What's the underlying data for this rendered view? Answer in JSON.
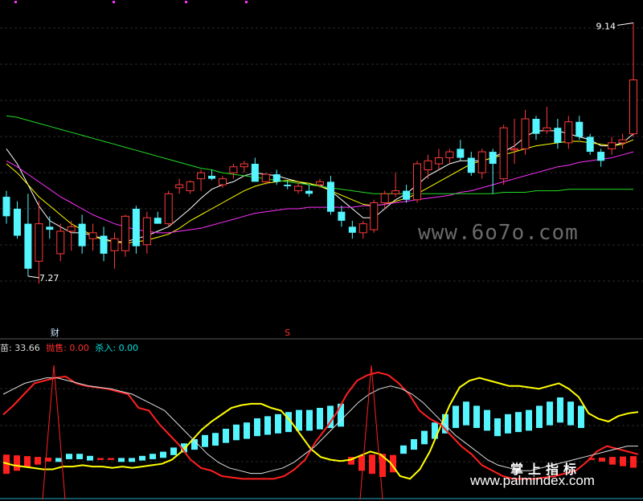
{
  "chart_data": [
    {
      "type": "candlestick",
      "price_high_label": "9.14",
      "price_low_label": "7.27",
      "markers": [
        {
          "label": "财",
          "color": "#cfe6ff",
          "x_index": 3
        },
        {
          "label": "S",
          "color": "#ff3030",
          "x_index": 26
        }
      ],
      "ylim": [
        7.15,
        9.25
      ],
      "candles": [
        {
          "o": 7.85,
          "h": 8.02,
          "l": 7.8,
          "c": 7.98,
          "up": false
        },
        {
          "o": 7.9,
          "h": 7.95,
          "l": 7.7,
          "c": 7.72,
          "up": false
        },
        {
          "o": 7.8,
          "h": 8.0,
          "l": 7.45,
          "c": 7.5,
          "up": false
        },
        {
          "o": 7.55,
          "h": 7.95,
          "l": 7.4,
          "c": 7.8,
          "up": true
        },
        {
          "o": 7.78,
          "h": 7.85,
          "l": 7.7,
          "c": 7.76,
          "up": false
        },
        {
          "o": 7.6,
          "h": 7.8,
          "l": 7.55,
          "c": 7.75,
          "up": true
        },
        {
          "o": 7.75,
          "h": 7.82,
          "l": 7.62,
          "c": 7.78,
          "up": true
        },
        {
          "o": 7.8,
          "h": 7.86,
          "l": 7.6,
          "c": 7.65,
          "up": false
        },
        {
          "o": 7.7,
          "h": 7.8,
          "l": 7.62,
          "c": 7.74,
          "up": true
        },
        {
          "o": 7.72,
          "h": 7.78,
          "l": 7.55,
          "c": 7.6,
          "up": false
        },
        {
          "o": 7.62,
          "h": 7.74,
          "l": 7.5,
          "c": 7.7,
          "up": true
        },
        {
          "o": 7.62,
          "h": 7.86,
          "l": 7.58,
          "c": 7.85,
          "up": true
        },
        {
          "o": 7.9,
          "h": 7.92,
          "l": 7.6,
          "c": 7.65,
          "up": false
        },
        {
          "o": 7.66,
          "h": 7.88,
          "l": 7.6,
          "c": 7.84,
          "up": true
        },
        {
          "o": 7.84,
          "h": 7.88,
          "l": 7.8,
          "c": 7.8,
          "up": false
        },
        {
          "o": 7.8,
          "h": 8.02,
          "l": 7.78,
          "c": 8.0,
          "up": true
        },
        {
          "o": 8.04,
          "h": 8.1,
          "l": 8.0,
          "c": 8.06,
          "up": true
        },
        {
          "o": 8.02,
          "h": 8.09,
          "l": 8.0,
          "c": 8.08,
          "up": true
        },
        {
          "o": 8.1,
          "h": 8.16,
          "l": 8.02,
          "c": 8.14,
          "up": true
        },
        {
          "o": 8.12,
          "h": 8.16,
          "l": 8.09,
          "c": 8.1,
          "up": false
        },
        {
          "o": 8.06,
          "h": 8.12,
          "l": 8.04,
          "c": 8.1,
          "up": true
        },
        {
          "o": 8.14,
          "h": 8.2,
          "l": 8.1,
          "c": 8.18,
          "up": true
        },
        {
          "o": 8.18,
          "h": 8.22,
          "l": 8.14,
          "c": 8.2,
          "up": true
        },
        {
          "o": 8.2,
          "h": 8.24,
          "l": 8.1,
          "c": 8.08,
          "up": false
        },
        {
          "o": 8.08,
          "h": 8.14,
          "l": 8.06,
          "c": 8.13,
          "up": true
        },
        {
          "o": 8.13,
          "h": 8.16,
          "l": 8.06,
          "c": 8.08,
          "up": false
        },
        {
          "o": 8.06,
          "h": 8.09,
          "l": 8.03,
          "c": 8.05,
          "up": false
        },
        {
          "o": 8.02,
          "h": 8.08,
          "l": 8.0,
          "c": 8.05,
          "up": true
        },
        {
          "o": 8.02,
          "h": 8.06,
          "l": 7.98,
          "c": 8.0,
          "up": false
        },
        {
          "o": 8.06,
          "h": 8.1,
          "l": 8.04,
          "c": 8.08,
          "up": true
        },
        {
          "o": 8.08,
          "h": 8.12,
          "l": 7.86,
          "c": 7.88,
          "up": false
        },
        {
          "o": 7.88,
          "h": 7.92,
          "l": 7.78,
          "c": 7.82,
          "up": false
        },
        {
          "o": 7.78,
          "h": 7.82,
          "l": 7.7,
          "c": 7.74,
          "up": false
        },
        {
          "o": 7.74,
          "h": 7.82,
          "l": 7.7,
          "c": 7.8,
          "up": true
        },
        {
          "o": 7.76,
          "h": 7.96,
          "l": 7.74,
          "c": 7.94,
          "up": true
        },
        {
          "o": 7.94,
          "h": 8.02,
          "l": 7.9,
          "c": 8.0,
          "up": true
        },
        {
          "o": 8.0,
          "h": 8.14,
          "l": 7.98,
          "c": 8.02,
          "up": true
        },
        {
          "o": 8.02,
          "h": 8.06,
          "l": 7.94,
          "c": 7.96,
          "up": false
        },
        {
          "o": 7.96,
          "h": 8.22,
          "l": 7.94,
          "c": 8.2,
          "up": true
        },
        {
          "o": 8.16,
          "h": 8.26,
          "l": 8.1,
          "c": 8.22,
          "up": true
        },
        {
          "o": 8.2,
          "h": 8.3,
          "l": 8.16,
          "c": 8.24,
          "up": true
        },
        {
          "o": 8.24,
          "h": 8.3,
          "l": 8.2,
          "c": 8.28,
          "up": true
        },
        {
          "o": 8.3,
          "h": 8.36,
          "l": 8.22,
          "c": 8.24,
          "up": false
        },
        {
          "o": 8.24,
          "h": 8.28,
          "l": 8.12,
          "c": 8.14,
          "up": false
        },
        {
          "o": 8.14,
          "h": 8.3,
          "l": 8.1,
          "c": 8.28,
          "up": true
        },
        {
          "o": 8.28,
          "h": 8.3,
          "l": 8.0,
          "c": 8.2,
          "up": false
        },
        {
          "o": 8.1,
          "h": 8.46,
          "l": 8.06,
          "c": 8.44,
          "up": true
        },
        {
          "o": 8.3,
          "h": 8.5,
          "l": 8.2,
          "c": 8.3,
          "up": true
        },
        {
          "o": 8.3,
          "h": 8.56,
          "l": 8.26,
          "c": 8.5,
          "up": true
        },
        {
          "o": 8.5,
          "h": 8.52,
          "l": 8.36,
          "c": 8.4,
          "up": false
        },
        {
          "o": 8.42,
          "h": 8.58,
          "l": 8.4,
          "c": 8.44,
          "up": true
        },
        {
          "o": 8.44,
          "h": 8.5,
          "l": 8.3,
          "c": 8.34,
          "up": false
        },
        {
          "o": 8.34,
          "h": 8.52,
          "l": 8.3,
          "c": 8.48,
          "up": true
        },
        {
          "o": 8.48,
          "h": 8.52,
          "l": 8.36,
          "c": 8.38,
          "up": false
        },
        {
          "o": 8.38,
          "h": 8.4,
          "l": 8.26,
          "c": 8.28,
          "up": false
        },
        {
          "o": 8.28,
          "h": 8.3,
          "l": 8.18,
          "c": 8.22,
          "up": false
        },
        {
          "o": 8.3,
          "h": 8.38,
          "l": 8.26,
          "c": 8.34,
          "up": true
        },
        {
          "o": 8.34,
          "h": 8.4,
          "l": 8.3,
          "c": 8.36,
          "up": true
        },
        {
          "o": 8.4,
          "h": 9.14,
          "l": 8.38,
          "c": 8.76,
          "up": true
        }
      ],
      "ma_series": [
        {
          "color": "#ffffff",
          "values": [
            8.3,
            8.2,
            8.06,
            7.92,
            7.82,
            7.78,
            7.74,
            7.74,
            7.72,
            7.7,
            7.68,
            7.68,
            7.7,
            7.72,
            7.75,
            7.78,
            7.84,
            7.9,
            7.97,
            8.03,
            8.06,
            8.08,
            8.12,
            8.14,
            8.13,
            8.12,
            8.1,
            8.08,
            8.06,
            8.06,
            8.02,
            7.96,
            7.9,
            7.84,
            7.84,
            7.9,
            7.96,
            8.0,
            8.06,
            8.12,
            8.16,
            8.2,
            8.22,
            8.22,
            8.22,
            8.24,
            8.28,
            8.32,
            8.38,
            8.42,
            8.42,
            8.42,
            8.4,
            8.38,
            8.36,
            8.32,
            8.32,
            8.34,
            8.4
          ]
        },
        {
          "color": "#ffff00",
          "values": [
            8.2,
            8.14,
            8.06,
            7.98,
            7.92,
            7.86,
            7.8,
            7.76,
            7.72,
            7.69,
            7.68,
            7.67,
            7.68,
            7.69,
            7.71,
            7.73,
            7.77,
            7.82,
            7.86,
            7.9,
            7.94,
            7.98,
            8.02,
            8.05,
            8.07,
            8.08,
            8.09,
            8.08,
            8.07,
            8.05,
            8.02,
            7.99,
            7.96,
            7.93,
            7.92,
            7.93,
            7.95,
            7.97,
            8.0,
            8.04,
            8.08,
            8.12,
            8.16,
            8.2,
            8.22,
            8.24,
            8.26,
            8.28,
            8.3,
            8.32,
            8.33,
            8.34,
            8.35,
            8.35,
            8.34,
            8.33,
            8.32,
            8.33,
            8.36
          ]
        },
        {
          "color": "#ff30ff",
          "values": [
            8.22,
            8.18,
            8.13,
            8.08,
            8.03,
            7.98,
            7.94,
            7.9,
            7.86,
            7.83,
            7.8,
            7.78,
            7.76,
            7.75,
            7.74,
            7.74,
            7.75,
            7.76,
            7.77,
            7.79,
            7.81,
            7.83,
            7.85,
            7.87,
            7.88,
            7.89,
            7.9,
            7.9,
            7.91,
            7.91,
            7.91,
            7.91,
            7.91,
            7.92,
            7.92,
            7.93,
            7.94,
            7.95,
            7.96,
            7.97,
            7.98,
            7.99,
            8.01,
            8.02,
            8.04,
            8.06,
            8.08,
            8.1,
            8.12,
            8.14,
            8.16,
            8.18,
            8.19,
            8.21,
            8.22,
            8.23,
            8.24,
            8.26,
            8.28
          ]
        },
        {
          "color": "#22dd22",
          "values": [
            8.52,
            8.51,
            8.49,
            8.47,
            8.45,
            8.43,
            8.41,
            8.39,
            8.37,
            8.35,
            8.33,
            8.31,
            8.29,
            8.27,
            8.25,
            8.23,
            8.21,
            8.19,
            8.17,
            8.16,
            8.14,
            8.13,
            8.12,
            8.11,
            8.1,
            8.09,
            8.08,
            8.07,
            8.06,
            8.05,
            8.04,
            8.03,
            8.02,
            8.01,
            8.0,
            8.0,
            8.0,
            8.0,
            8.0,
            8.0,
            8.0,
            8.0,
            8.0,
            8.0,
            8.0,
            8.0,
            8.01,
            8.01,
            8.01,
            8.02,
            8.02,
            8.02,
            8.03,
            8.03,
            8.03,
            8.03,
            8.03,
            8.03,
            8.03
          ]
        }
      ]
    },
    {
      "type": "indicator",
      "legend": [
        {
          "label": "苗: 33.66",
          "color": "#dddddd"
        },
        {
          "label": "抛售: 0.00",
          "color": "#ff3030"
        },
        {
          "label": "杀入: 0.00",
          "color": "#00e0e0"
        }
      ],
      "ylim": [
        0,
        100
      ],
      "bars": [
        {
          "v": -10
        },
        {
          "v": -8
        },
        {
          "v": -6
        },
        {
          "v": -4
        },
        {
          "v": -2
        },
        {
          "v": 1
        },
        {
          "v": 3
        },
        {
          "v": 3
        },
        {
          "v": 2
        },
        {
          "v": -1
        },
        {
          "v": -1
        },
        {
          "v": 1
        },
        {
          "v": 1
        },
        {
          "v": 2
        },
        {
          "v": 3
        },
        {
          "v": 4
        },
        {
          "v": 6
        },
        {
          "v": 8
        },
        {
          "v": 10
        },
        {
          "v": 12
        },
        {
          "v": 13
        },
        {
          "v": 15
        },
        {
          "v": 17
        },
        {
          "v": 18
        },
        {
          "v": 20
        },
        {
          "v": 21
        },
        {
          "v": 22
        },
        {
          "v": 23
        },
        {
          "v": 24
        },
        {
          "v": 24
        },
        {
          "v": 25
        },
        {
          "v": 26
        },
        {
          "v": 27
        },
        {
          "v": -4
        },
        {
          "v": -8
        },
        {
          "v": -10
        },
        {
          "v": -12
        },
        {
          "v": -9
        },
        {
          "v": 7
        },
        {
          "v": 10
        },
        {
          "v": 14
        },
        {
          "v": 18
        },
        {
          "v": 22
        },
        {
          "v": 26
        },
        {
          "v": 28
        },
        {
          "v": 26
        },
        {
          "v": 24
        },
        {
          "v": 20
        },
        {
          "v": 22
        },
        {
          "v": 23
        },
        {
          "v": 24
        },
        {
          "v": 26
        },
        {
          "v": 28
        },
        {
          "v": 30
        },
        {
          "v": 28
        },
        {
          "v": 26
        },
        {
          "v": -1
        },
        {
          "v": -2
        },
        {
          "v": -4
        },
        {
          "v": -5
        },
        {
          "v": -6
        }
      ],
      "lines": [
        {
          "color": "#ffff00",
          "values": [
            20,
            18,
            17,
            16,
            15,
            15,
            17,
            17,
            18,
            17,
            17,
            16,
            17,
            16,
            17,
            18,
            19,
            22,
            28,
            36,
            44,
            50,
            55,
            60,
            62,
            63,
            63,
            60,
            58,
            50,
            40,
            30,
            24,
            22,
            21,
            22,
            25,
            28,
            26,
            20,
            10,
            8,
            15,
            28,
            45,
            62,
            75,
            80,
            82,
            80,
            78,
            76,
            76,
            75,
            74,
            76,
            78,
            74,
            68,
            56,
            52,
            50,
            54,
            56,
            57
          ]
        },
        {
          "color": "#ff2020",
          "values": [
            55,
            62,
            70,
            78,
            80,
            82,
            83,
            78,
            76,
            75,
            74,
            72,
            70,
            60,
            58,
            48,
            40,
            32,
            22,
            16,
            14,
            10,
            9,
            8,
            8,
            8,
            8,
            10,
            15,
            22,
            35,
            45,
            56,
            70,
            80,
            84,
            86,
            84,
            78,
            70,
            58,
            52,
            48,
            40,
            32,
            26,
            18,
            14,
            10,
            8,
            8,
            8,
            9,
            10,
            12,
            14,
            20,
            28,
            32,
            30,
            28,
            26
          ]
        },
        {
          "color": "#e0e0e0",
          "values": [
            70,
            74,
            78,
            80,
            82,
            82,
            80,
            78,
            76,
            75,
            74,
            72,
            70,
            66,
            62,
            58,
            50,
            42,
            34,
            26,
            20,
            16,
            14,
            12,
            12,
            14,
            16,
            20,
            26,
            32,
            40,
            48,
            56,
            64,
            70,
            74,
            76,
            74,
            70,
            64,
            56,
            48,
            40,
            34,
            28,
            22,
            18,
            16,
            14,
            14,
            16,
            18,
            20,
            22,
            24,
            26,
            28,
            30,
            32,
            32
          ]
        }
      ],
      "spikes": [
        3,
        33
      ]
    }
  ],
  "watermarks": {
    "site_top": "www.6o7o.com",
    "cn_text": "掌上指标",
    "site_bottom": "www.palmindex.com"
  }
}
